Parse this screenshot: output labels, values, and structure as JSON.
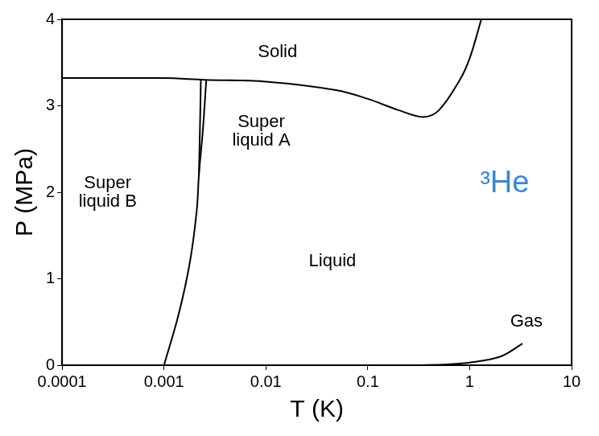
{
  "chart_data": {
    "type": "line",
    "x_label": "T (K)",
    "y_label": "P (MPa)",
    "log": "x",
    "grid": false,
    "xlim": [
      0.0001,
      10
    ],
    "xticks": [
      0.0001,
      0.001,
      0.01,
      0.1,
      1,
      10
    ],
    "ylim": [
      0,
      4
    ],
    "yticks": [
      0,
      1,
      2,
      3,
      4
    ],
    "series": [
      {
        "color": "#000000",
        "x": [
          0.0001,
          0.001,
          0.0025,
          0.01,
          0.05,
          0.1,
          0.2,
          0.35,
          0.5,
          0.8,
          1.0,
          1.3
        ],
        "values": [
          3.32,
          3.32,
          3.3,
          3.28,
          3.18,
          3.08,
          2.95,
          2.87,
          2.95,
          3.3,
          3.55,
          4.0
        ]
      },
      {
        "color": "#000000",
        "x": [
          0.001,
          0.0014,
          0.0018,
          0.0021,
          0.0022,
          0.0024,
          0.0026
        ],
        "values": [
          0,
          0.6,
          1.2,
          1.8,
          2.2,
          2.7,
          3.3
        ]
      },
      {
        "color": "#000000",
        "x": [
          0.0022,
          0.00225,
          0.0023
        ],
        "values": [
          2.2,
          2.7,
          3.3
        ]
      },
      {
        "color": "#000000",
        "x": [
          0.3,
          0.6,
          1,
          2,
          3.3
        ],
        "values": [
          0,
          0.01,
          0.03,
          0.1,
          0.25
        ]
      }
    ],
    "annotations": [
      {
        "text": "Solid",
        "x": 0.013,
        "y": 3.62,
        "color": "#000000"
      },
      {
        "text": "Super liquid A",
        "x": 0.009,
        "y": 2.7,
        "color": "#000000"
      },
      {
        "text": "Super liquid B",
        "x": 0.00028,
        "y": 2.0,
        "color": "#000000"
      },
      {
        "text": "Liquid",
        "x": 0.045,
        "y": 1.2,
        "color": "#000000"
      },
      {
        "text": "Gas",
        "x": 3.6,
        "y": 0.5,
        "color": "#000000"
      },
      {
        "text": "³He",
        "x": 2.2,
        "y": 2.1,
        "color": "#3a86d6"
      }
    ]
  }
}
